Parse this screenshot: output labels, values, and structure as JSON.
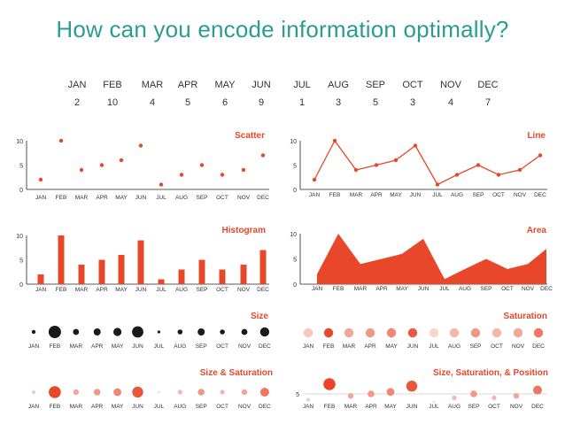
{
  "title": "How can you encode information optimally?",
  "months": [
    "JAN",
    "FEB",
    "MAR",
    "APR",
    "MAY",
    "JUN",
    "JUL",
    "AUG",
    "SEP",
    "OCT",
    "NOV",
    "DEC"
  ],
  "values": [
    2,
    10,
    4,
    5,
    6,
    9,
    1,
    3,
    5,
    3,
    4,
    7
  ],
  "colors": {
    "accent": "#e8472a",
    "title": "#2a9d8f",
    "text": "#333333",
    "grid": "#222222",
    "light_line": "#cccccc"
  },
  "chart_data": [
    {
      "type": "scatter",
      "title": "Scatter",
      "categories": [
        "JAN",
        "FEB",
        "MAR",
        "APR",
        "MAY",
        "JUN",
        "JUL",
        "AUG",
        "SEP",
        "OCT",
        "NOV",
        "DEC"
      ],
      "values": [
        2,
        10,
        4,
        5,
        6,
        9,
        1,
        3,
        5,
        3,
        4,
        7
      ],
      "yticks": [
        0,
        5,
        10
      ],
      "ylim": [
        0,
        10
      ]
    },
    {
      "type": "line",
      "title": "Line",
      "categories": [
        "JAN",
        "FEB",
        "MAR",
        "APR",
        "MAY",
        "JUN",
        "JUL",
        "AUG",
        "SEP",
        "OCT",
        "NOV",
        "DEC"
      ],
      "values": [
        2,
        10,
        4,
        5,
        6,
        9,
        1,
        3,
        5,
        3,
        4,
        7
      ],
      "yticks": [
        0,
        5,
        10
      ],
      "ylim": [
        0,
        10
      ]
    },
    {
      "type": "bar",
      "title": "Histogram",
      "categories": [
        "JAN",
        "FEB",
        "MAR",
        "APR",
        "MAY",
        "JUN",
        "JUL",
        "AUG",
        "SEP",
        "OCT",
        "NOV",
        "DEC"
      ],
      "values": [
        2,
        10,
        4,
        5,
        6,
        9,
        1,
        3,
        5,
        3,
        4,
        7
      ],
      "yticks": [
        0,
        5,
        10
      ],
      "ylim": [
        0,
        10
      ]
    },
    {
      "type": "area",
      "title": "Area",
      "categories": [
        "JAN",
        "FEB",
        "MAR",
        "APR",
        "MAY",
        "JUN",
        "JUL",
        "AUG",
        "SEP",
        "OCT",
        "NOV",
        "DEC"
      ],
      "values": [
        2,
        10,
        4,
        5,
        6,
        9,
        1,
        3,
        5,
        3,
        4,
        7
      ],
      "yticks": [
        0,
        5,
        10
      ],
      "ylim": [
        0,
        10
      ]
    },
    {
      "type": "scatter",
      "encoding": "size",
      "title": "Size",
      "categories": [
        "JAN",
        "FEB",
        "MAR",
        "APR",
        "MAY",
        "JUN",
        "JUL",
        "AUG",
        "SEP",
        "OCT",
        "NOV",
        "DEC"
      ],
      "values": [
        2,
        10,
        4,
        5,
        6,
        9,
        1,
        3,
        5,
        3,
        4,
        7
      ]
    },
    {
      "type": "scatter",
      "encoding": "saturation",
      "title": "Saturation",
      "categories": [
        "JAN",
        "FEB",
        "MAR",
        "APR",
        "MAY",
        "JUN",
        "JUL",
        "AUG",
        "SEP",
        "OCT",
        "NOV",
        "DEC"
      ],
      "values": [
        2,
        10,
        4,
        5,
        6,
        9,
        1,
        3,
        5,
        3,
        4,
        7
      ]
    },
    {
      "type": "scatter",
      "encoding": "size-saturation",
      "title": "Size & Saturation",
      "categories": [
        "JAN",
        "FEB",
        "MAR",
        "APR",
        "MAY",
        "JUN",
        "JUL",
        "AUG",
        "SEP",
        "OCT",
        "NOV",
        "DEC"
      ],
      "values": [
        2,
        10,
        4,
        5,
        6,
        9,
        1,
        3,
        5,
        3,
        4,
        7
      ]
    },
    {
      "type": "scatter",
      "encoding": "size-saturation-position",
      "title": "Size, Saturation, & Position",
      "categories": [
        "JAN",
        "FEB",
        "MAR",
        "APR",
        "MAY",
        "JUN",
        "JUL",
        "AUG",
        "SEP",
        "OCT",
        "NOV",
        "DEC"
      ],
      "values": [
        2,
        10,
        4,
        5,
        6,
        9,
        1,
        3,
        5,
        3,
        4,
        7
      ],
      "yticks": [
        5
      ]
    }
  ]
}
